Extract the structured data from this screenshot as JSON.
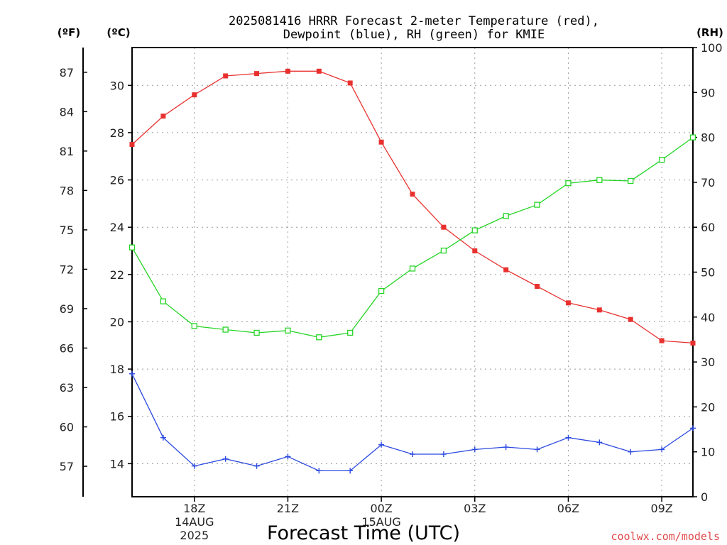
{
  "chart_data": {
    "type": "line",
    "title": [
      "2025081416 HRRR Forecast 2-meter Temperature (red),",
      "Dewpoint (blue), RH (green) for KMIE"
    ],
    "xlabel": "Forecast Time (UTC)",
    "credit": "coolwx.com/models",
    "units": {
      "fahrenheit": "(ºF)",
      "celsius": "(ºC)",
      "rh": "(RH)"
    },
    "x": [
      "16Z",
      "17Z",
      "18Z",
      "19Z",
      "20Z",
      "21Z",
      "22Z",
      "23Z",
      "00Z",
      "01Z",
      "02Z",
      "03Z",
      "04Z",
      "05Z",
      "06Z",
      "07Z",
      "08Z",
      "09Z",
      "10Z"
    ],
    "x_tick_labels": [
      {
        "index": 2,
        "lines": [
          "18Z",
          "14AUG",
          "2025"
        ]
      },
      {
        "index": 5,
        "lines": [
          "21Z"
        ]
      },
      {
        "index": 8,
        "lines": [
          "00Z",
          "15AUG"
        ]
      },
      {
        "index": 11,
        "lines": [
          "03Z"
        ]
      },
      {
        "index": 14,
        "lines": [
          "06Z"
        ]
      },
      {
        "index": 17,
        "lines": [
          "09Z"
        ]
      }
    ],
    "ylim_celsius": [
      12.6,
      31.6
    ],
    "ylim_rh": [
      0,
      100
    ],
    "yticks_celsius": [
      "14",
      "16",
      "18",
      "20",
      "22",
      "24",
      "26",
      "28",
      "30"
    ],
    "yticks_fahrenheit": [
      "57",
      "60",
      "63",
      "66",
      "69",
      "72",
      "75",
      "78",
      "81",
      "84",
      "87"
    ],
    "yticks_rh": [
      "0",
      "10",
      "20",
      "30",
      "40",
      "50",
      "60",
      "70",
      "80",
      "90",
      "100"
    ],
    "grid": true,
    "series": [
      {
        "axis": "celsius",
        "color": "#e8312f",
        "marker": "filled-square",
        "values": [
          27.5,
          28.7,
          29.6,
          30.4,
          30.5,
          30.6,
          30.6,
          30.1,
          27.6,
          25.4,
          24.0,
          23.0,
          22.2,
          21.5,
          20.8,
          20.5,
          20.1,
          19.2,
          19.1
        ]
      },
      {
        "axis": "celsius",
        "color": "#2b49e0",
        "marker": "plus",
        "values": [
          17.8,
          15.1,
          13.9,
          14.2,
          13.9,
          14.3,
          13.7,
          13.7,
          14.8,
          14.4,
          14.4,
          14.6,
          14.7,
          14.6,
          15.1,
          14.9,
          14.5,
          14.6,
          15.5
        ]
      },
      {
        "axis": "rh",
        "color": "#26d426",
        "marker": "open-square",
        "values": [
          55.5,
          43.5,
          38.0,
          37.2,
          36.5,
          37.0,
          35.5,
          36.5,
          45.8,
          50.8,
          54.8,
          59.3,
          62.5,
          65.0,
          69.8,
          70.5,
          70.3,
          75.0,
          80.0
        ]
      }
    ]
  }
}
